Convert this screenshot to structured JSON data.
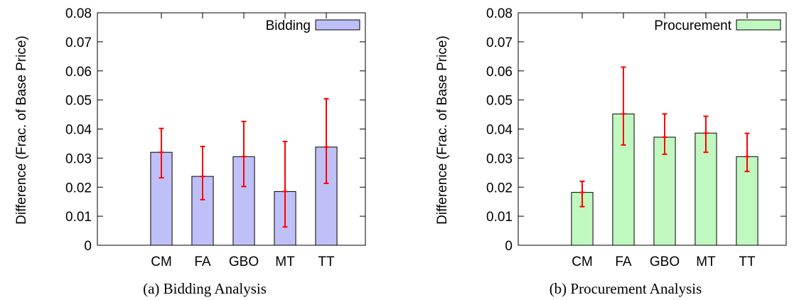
{
  "chart_data": [
    {
      "type": "bar",
      "caption": "(a) Bidding Analysis",
      "ylabel": "Difference (Frac. of Base Price)",
      "ylim": [
        0,
        0.08
      ],
      "yticks": [
        "0",
        "0.01",
        "0.02",
        "0.03",
        "0.04",
        "0.05",
        "0.06",
        "0.07",
        "0.08"
      ],
      "categories": [
        "CM",
        "FA",
        "GBO",
        "MT",
        "TT"
      ],
      "series": [
        {
          "name": "Bidding",
          "color": "#c0c0f8",
          "values": [
            0.032,
            0.0237,
            0.0305,
            0.0185,
            0.0338
          ],
          "error_low": [
            0.0232,
            0.0157,
            0.0202,
            0.0063,
            0.0213
          ],
          "error_high": [
            0.0402,
            0.034,
            0.0426,
            0.0357,
            0.0504
          ]
        }
      ],
      "legend": "top-right",
      "error_bar_color": "#ff0000"
    },
    {
      "type": "bar",
      "caption": "(b) Procurement Analysis",
      "ylabel": "Difference (Frac. of Base Price)",
      "ylim": [
        0,
        0.08
      ],
      "yticks": [
        "0",
        "0.01",
        "0.02",
        "0.03",
        "0.04",
        "0.05",
        "0.06",
        "0.07",
        "0.08"
      ],
      "categories": [
        "CM",
        "FA",
        "GBO",
        "MT",
        "TT"
      ],
      "series": [
        {
          "name": "Procurement",
          "color": "#c0f8c0",
          "values": [
            0.0182,
            0.0452,
            0.0372,
            0.0386,
            0.0305
          ],
          "error_low": [
            0.0133,
            0.0345,
            0.0313,
            0.032,
            0.0254
          ],
          "error_high": [
            0.022,
            0.0613,
            0.0452,
            0.0444,
            0.0385
          ]
        }
      ],
      "legend": "top-right",
      "error_bar_color": "#ff0000"
    }
  ]
}
